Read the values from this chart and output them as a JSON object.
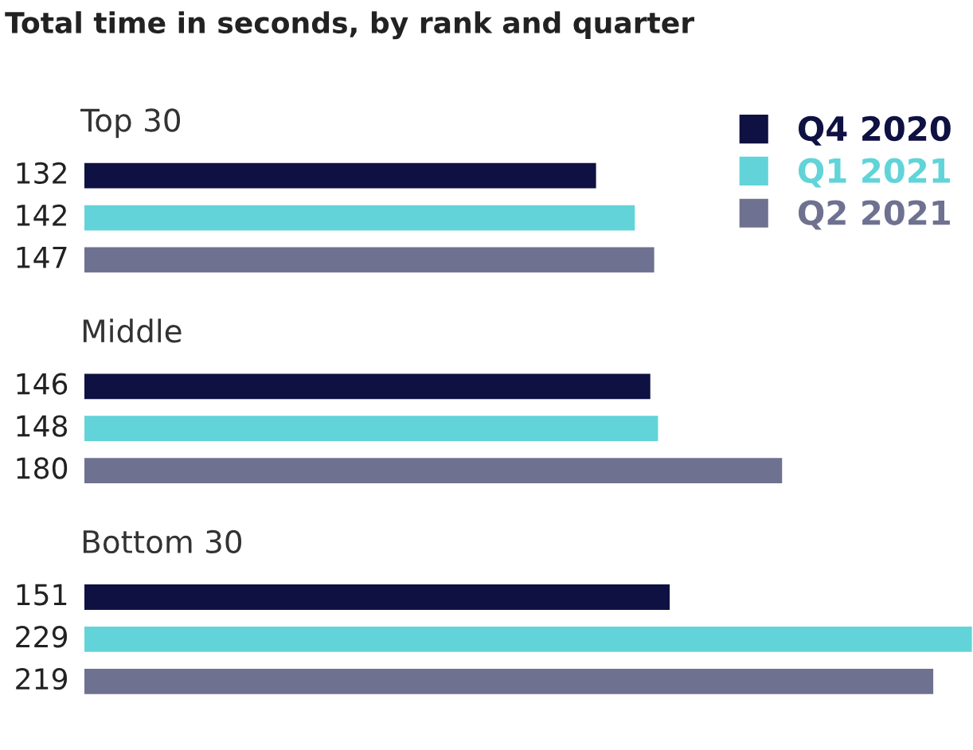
{
  "chart_data": {
    "type": "bar",
    "orientation": "horizontal",
    "title": "Total time in seconds, by rank and quarter",
    "categories": [
      "Top 30",
      "Middle",
      "Bottom 30"
    ],
    "series": [
      {
        "name": "Q4 2020",
        "color": "#0f1142",
        "values": [
          132,
          146,
          151
        ]
      },
      {
        "name": "Q1 2021",
        "color": "#62d4d9",
        "values": [
          142,
          148,
          229
        ]
      },
      {
        "name": "Q2 2021",
        "color": "#6e7190",
        "values": [
          147,
          180,
          219
        ]
      }
    ],
    "data_labels": true,
    "legend": "top right"
  }
}
